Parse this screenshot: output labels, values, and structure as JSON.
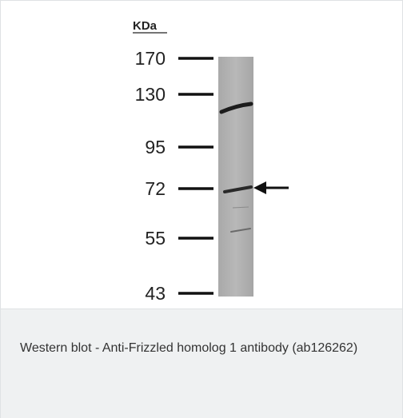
{
  "figure": {
    "unit_label": "KDa",
    "markers": [
      "170",
      "130",
      "95",
      "72",
      "55",
      "43"
    ]
  },
  "caption": "Western blot - Anti-Frizzled homolog 1 antibody (ab126262)"
}
